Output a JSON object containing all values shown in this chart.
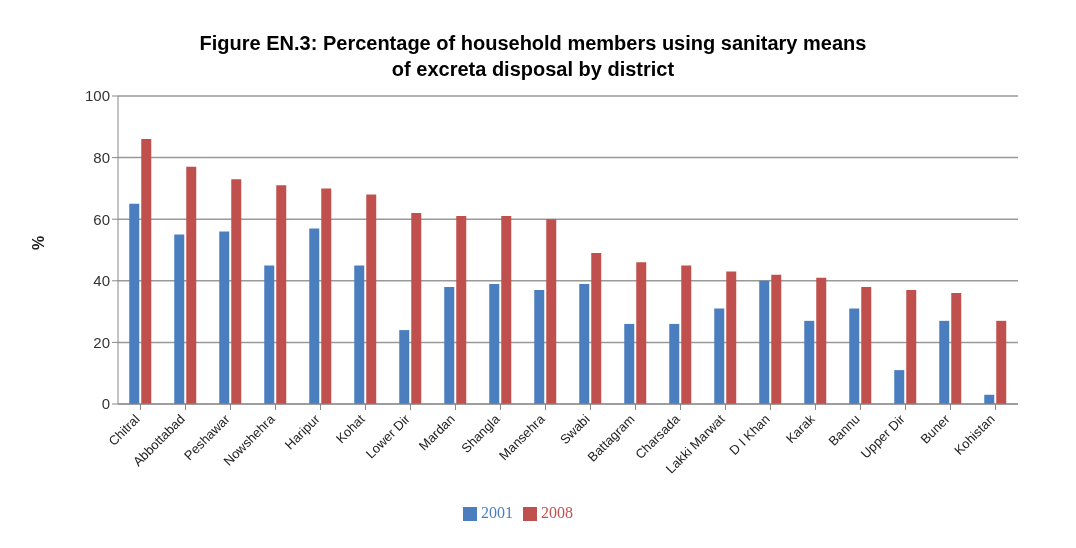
{
  "chart_data": {
    "type": "bar",
    "title": "Figure EN.3: Percentage of household members using sanitary means of excreta disposal by district",
    "ylabel": "%",
    "categories": [
      "Chitral",
      "Abbottabad",
      "Peshawar",
      "Nowshehra",
      "Haripur",
      "Kohat",
      "Lower Dir",
      "Mardan",
      "Shangla",
      "Mansehra",
      "Swabi",
      "Battagram",
      "Charsada",
      "Lakki Marwat",
      "D I Khan",
      "Karak",
      "Bannu",
      "Upper Dir",
      "Buner",
      "Kohistan"
    ],
    "series": [
      {
        "name": "2001",
        "color": "#4a7ebf",
        "values": [
          65,
          55,
          56,
          45,
          57,
          45,
          24,
          38,
          39,
          37,
          39,
          26,
          26,
          31,
          40,
          27,
          31,
          11,
          27,
          3
        ]
      },
      {
        "name": "2008",
        "color": "#c0504d",
        "values": [
          86,
          77,
          73,
          71,
          70,
          68,
          62,
          61,
          61,
          60,
          49,
          46,
          45,
          43,
          42,
          41,
          38,
          37,
          36,
          27
        ]
      }
    ],
    "ylim": [
      0,
      100
    ],
    "yticks": [
      0,
      20,
      40,
      60,
      80,
      100
    ],
    "grid": "y",
    "legend": "bottom"
  }
}
